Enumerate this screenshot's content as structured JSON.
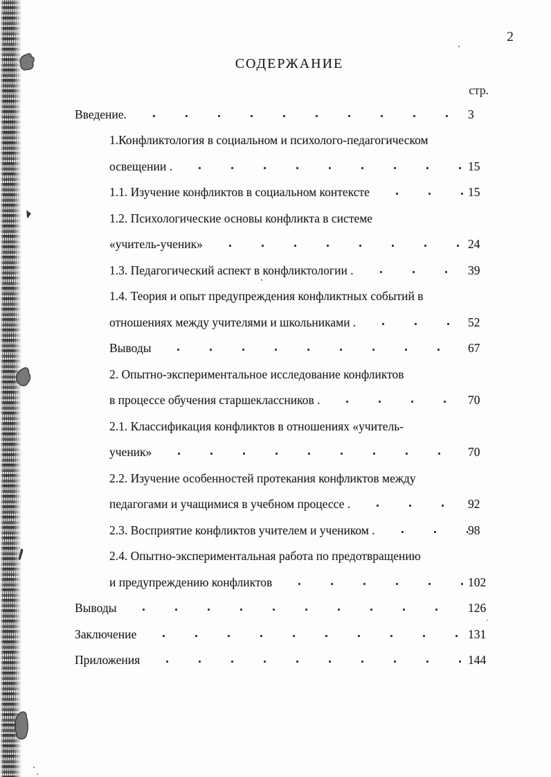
{
  "page": {
    "number": "2",
    "title": "СОДЕРЖАНИЕ",
    "column_header": "стр."
  },
  "toc": {
    "entries": [
      {
        "text": "Введение.",
        "page": "3",
        "indent": 0,
        "dots": true
      },
      {
        "text": "1.Конфликтология в социальном и психолого-педагогическом",
        "page": "",
        "indent": 1,
        "dots": false
      },
      {
        "text": "освещении .",
        "page": "15",
        "indent": 1,
        "dots": true
      },
      {
        "text": "1.1. Изучение конфликтов в социальном контексте",
        "page": "15",
        "indent": 1,
        "dots": true
      },
      {
        "text": "1.2. Психологические основы конфликта в системе",
        "page": "",
        "indent": 1,
        "dots": false
      },
      {
        "text": "«учитель-ученик»",
        "page": "24",
        "indent": 1,
        "dots": true
      },
      {
        "text": "1.3. Педагогический аспект в конфликтологии .",
        "page": "39",
        "indent": 1,
        "dots": true
      },
      {
        "text": "1.4. Теория и опыт предупреждения конфликтных событий в",
        "page": "",
        "indent": 1,
        "dots": false
      },
      {
        "text": "отношениях между учителями и школьниками .",
        "page": "52",
        "indent": 1,
        "dots": true
      },
      {
        "text": "Выводы",
        "page": "67",
        "indent": 1,
        "dots": true
      },
      {
        "text": "2. Опытно-экспериментальное исследование конфликтов",
        "page": "",
        "indent": 1,
        "dots": false
      },
      {
        "text": "в процессе обучения старшеклассников .",
        "page": "70",
        "indent": 1,
        "dots": true
      },
      {
        "text": "2.1. Классификация конфликтов в отношениях «учитель-",
        "page": "",
        "indent": 1,
        "dots": false
      },
      {
        "text": "ученик»",
        "page": "70",
        "indent": 1,
        "dots": true
      },
      {
        "text": "2.2. Изучение особенностей протекания конфликтов между",
        "page": "",
        "indent": 1,
        "dots": false
      },
      {
        "text": "педагогами и учащимися в учебном процессе .",
        "page": "92",
        "indent": 1,
        "dots": true
      },
      {
        "text": "2.3. Восприятие конфликтов учителем и учеником .",
        "page": "98",
        "indent": 1,
        "dots": true
      },
      {
        "text": "2.4. Опытно-экспериментальная работа по предотвращению",
        "page": "",
        "indent": 1,
        "dots": false
      },
      {
        "text": "и предупреждению конфликтов",
        "page": "102",
        "indent": 1,
        "dots": true
      },
      {
        "text": "Выводы",
        "page": "126",
        "indent": 0,
        "dots": true
      },
      {
        "text": "Заключение",
        "page": "131",
        "indent": 0,
        "dots": true
      },
      {
        "text": "Приложения",
        "page": "144",
        "indent": 0,
        "dots": true
      }
    ]
  }
}
